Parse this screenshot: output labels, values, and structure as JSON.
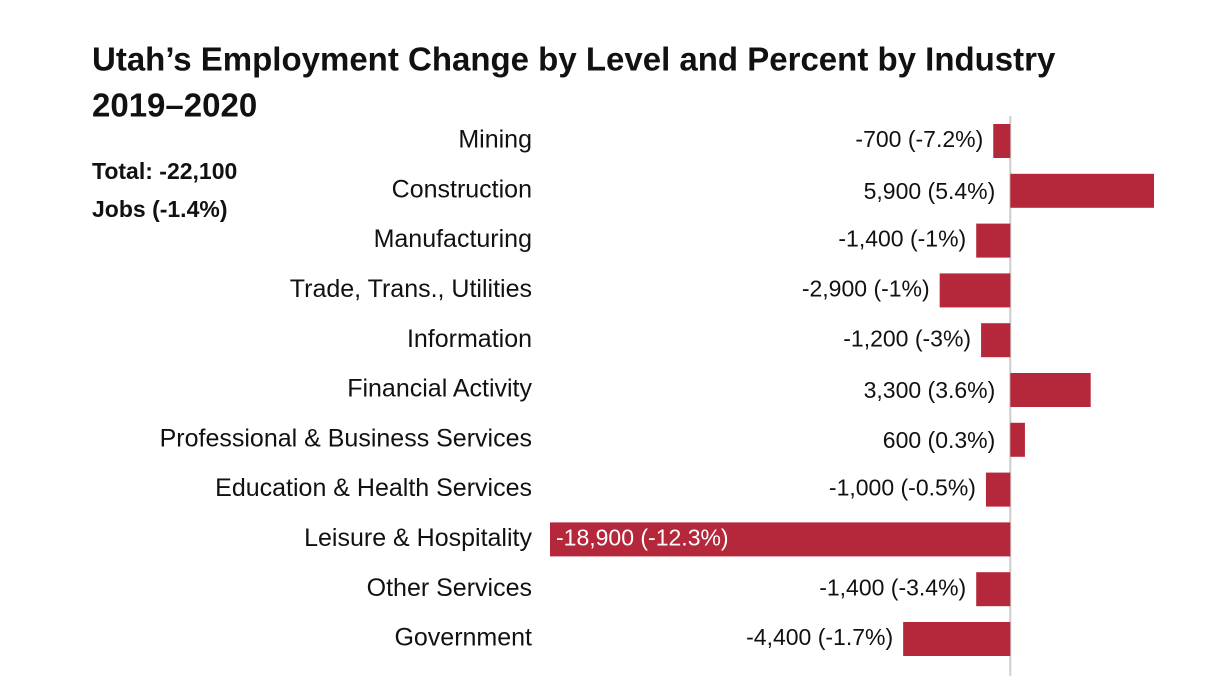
{
  "chart_data": {
    "type": "hbar",
    "title": "Utah’s Employment Change by Level and Percent by Industry",
    "subtitle": "2019–2020",
    "annotations": [
      "Total: -22,100",
      "Jobs (-1.4%)"
    ],
    "categories": [
      "Mining",
      "Construction",
      "Manufacturing",
      "Trade, Trans., Utilities",
      "Information",
      "Financial Activity",
      "Professional & Business Services",
      "Education & Health Services",
      "Leisure & Hospitality",
      "Other Services",
      "Government"
    ],
    "values": [
      -700,
      5900,
      -1400,
      -2900,
      -1200,
      3300,
      600,
      -1000,
      -18900,
      -1400,
      -4400
    ],
    "value_labels": [
      "-700 (-7.2%)",
      "5,900 (5.4%)",
      "-1,400 (-1%)",
      "-2,900 (-1%)",
      "-1,200 (-3%)",
      "3,300 (3.6%)",
      "600 (0.3%)",
      "-1,000 (-0.5%)",
      "-18,900 (-12.3%)",
      "-1,400 (-3.4%)",
      "-4,400 (-1.7%)"
    ],
    "color": "#b5273a",
    "xlim": [
      -18900,
      5900
    ]
  }
}
